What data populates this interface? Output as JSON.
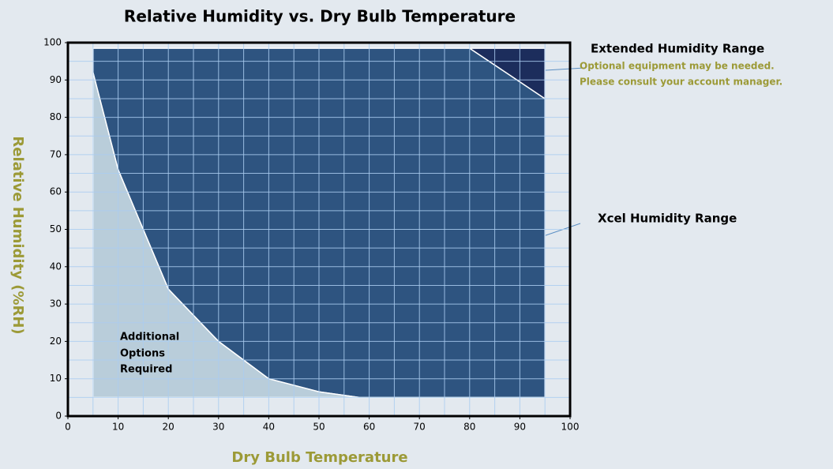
{
  "chart_data": {
    "type": "area",
    "title": "Relative Humidity vs. Dry Bulb Temperature",
    "x_label": "Dry Bulb Temperature",
    "y_label": "Relative Humidity (%RH)",
    "xlim": [
      0,
      100
    ],
    "ylim": [
      0,
      100
    ],
    "xticks": [
      0,
      10,
      20,
      30,
      40,
      50,
      60,
      70,
      80,
      90,
      100
    ],
    "yticks": [
      0,
      10,
      20,
      30,
      40,
      50,
      60,
      70,
      80,
      90,
      100
    ],
    "xgrid": [
      5,
      10,
      15,
      20,
      25,
      30,
      35,
      40,
      45,
      50,
      55,
      60,
      65,
      70,
      75,
      80,
      85,
      90,
      95
    ],
    "ygrid": [
      5,
      10,
      15,
      20,
      25,
      30,
      35,
      40,
      45,
      50,
      55,
      60,
      65,
      70,
      75,
      80,
      85,
      90,
      95
    ],
    "regions": [
      {
        "lines": [
          "Xcel Humidity Range"
        ],
        "color": "#2e5480",
        "x": [
          5,
          80,
          95,
          95,
          58,
          50,
          40,
          30,
          20,
          15,
          10,
          5
        ],
        "values": [
          98.5,
          98.5,
          85,
          5,
          5,
          6.5,
          10,
          20,
          34,
          50,
          66,
          92
        ]
      },
      {
        "lines": [
          "Extended Humidity Range",
          "Optional equipment may be needed.",
          "Please consult your account manager."
        ],
        "color": "#1c2d5c",
        "x": [
          80,
          95,
          95
        ],
        "values": [
          98.5,
          98.5,
          85
        ]
      },
      {
        "lines": [
          "Additional",
          "Options",
          "Required"
        ],
        "color": "#b9cdda",
        "x": [
          5,
          10,
          15,
          20,
          30,
          40,
          50,
          58,
          5
        ],
        "values": [
          92,
          66,
          50,
          34,
          20,
          10,
          6.5,
          5,
          5
        ]
      }
    ]
  }
}
